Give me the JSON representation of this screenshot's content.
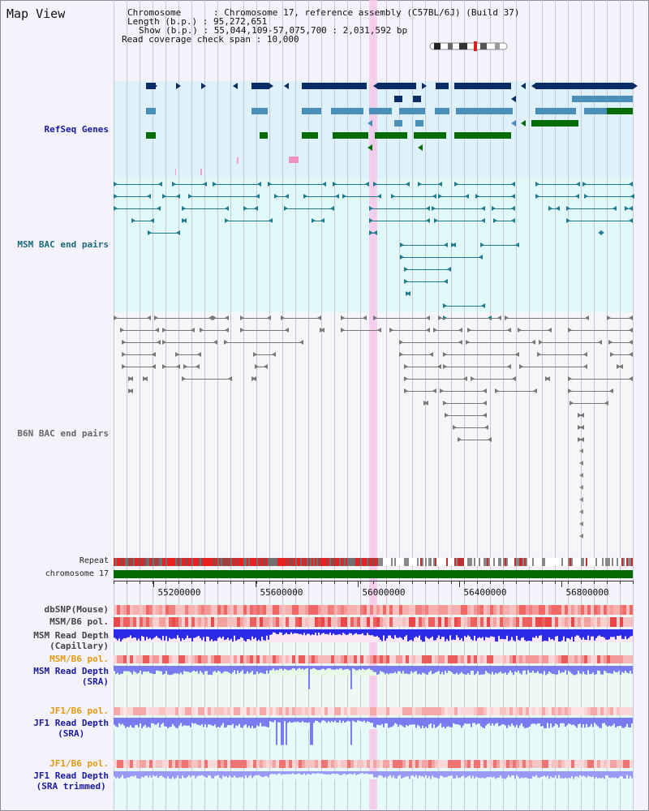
{
  "view": {
    "title": "Map View",
    "chromosome_key": "Chromosome",
    "chromosome_value": "Chromosome 17, reference assembly (C57BL/6J) (Build 37)",
    "length_key": "Length (b.p.)",
    "length_value": "95,272,651",
    "show_key": "Show (b.p.)",
    "show_value": "55,044,109-57,075,700 : 2,031,592 bp",
    "span_key": "Read coverage check span",
    "span_value": "10,000"
  },
  "tracks": {
    "refseq": "RefSeq Genes",
    "msm_bac": "MSM BAC end pairs",
    "b6n_bac": "B6N BAC end pairs",
    "repeat": "Repeat",
    "chromosome": "chromosome 17",
    "dbsnp": "dbSNP(Mouse)",
    "msm_b6_pol_1": "MSM/B6 pol.",
    "msm_depth_cap_1": "MSM Read Depth",
    "msm_depth_cap_2": "(Capillary)",
    "msm_b6_pol_2": "MSM/B6 pol.",
    "msm_depth_sra_1": "MSM Read Depth",
    "msm_depth_sra_2": "(SRA)",
    "jf1_b6_pol_1": "JF1/B6 pol.",
    "jf1_depth_sra_1": "JF1 Read Depth",
    "jf1_depth_sra_2": "(SRA)",
    "jf1_b6_pol_2": "JF1/B6 pol.",
    "jf1_depth_trim_1": "JF1 Read Depth",
    "jf1_depth_trim_2": "(SRA trimmed)"
  },
  "axis": {
    "ticks": [
      "55200000",
      "55600000",
      "56000000",
      "56400000",
      "56800000"
    ]
  },
  "colors": {
    "refseq_bg": "#dff1fa",
    "msm_bg": "#e0f8f8",
    "b6n_bg": "#f6f6f8",
    "highlight": "#f6c8ea",
    "navy": "#0a2e64",
    "steel": "#4a8fb8",
    "green": "#056c05",
    "teal": "#207a90",
    "gray": "#777777",
    "depth_blue": "#2a2ae8",
    "depth_soft": "#7b7bf0",
    "label_blue": "#1a1aa0",
    "label_teal": "#1a6a7a",
    "label_orange": "#e39a10"
  }
}
